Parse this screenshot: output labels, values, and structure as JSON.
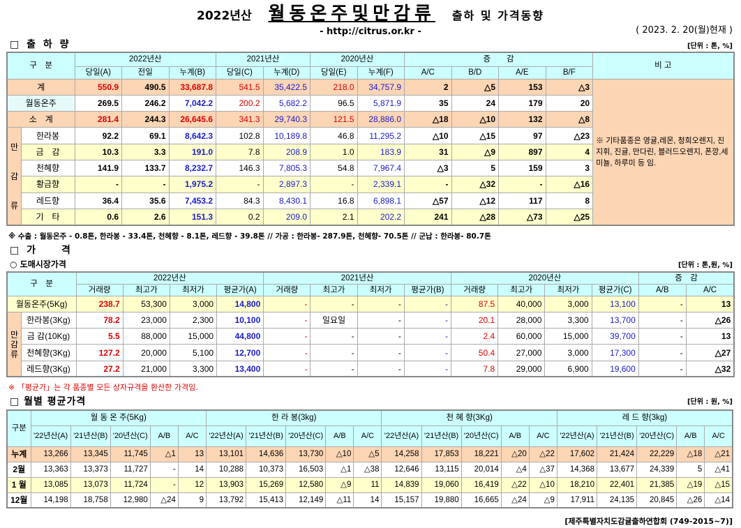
{
  "header": {
    "title_pre": "2022년산",
    "title_main": "월동온주및만감류",
    "title_post": "출하 및 가격동향",
    "url": "- http://citrus.or.kr -",
    "date": "( 2023. 2. 20(월)현재 )"
  },
  "colors": {
    "header": "#ccffff",
    "total_row": "#fcd5b4",
    "alt_row": "#ffffcc",
    "red": "#e00000",
    "blue": "#1a1ad0"
  },
  "shipment": {
    "section": "□ 출 하 량",
    "unit": "[단위 : 톤, %]",
    "group_headers": [
      "구　분",
      "2022년산",
      "2021년산",
      "2020년산",
      "증　　감",
      "비 고"
    ],
    "sub_headers": [
      "당일(A)",
      "전일",
      "누계(B)",
      "당일(C)",
      "누계(D)",
      "당일(E)",
      "누계(F)",
      "A/C",
      "B/D",
      "A/E",
      "B/F"
    ],
    "side_label": [
      "만",
      "감",
      "류"
    ],
    "rows": [
      {
        "label": "계",
        "values": [
          "550.9",
          "490.5",
          "33,687.8",
          "541.5",
          "35,422.5",
          "218.0",
          "34,757.9",
          "2",
          "△5",
          "153",
          "△3"
        ]
      },
      {
        "label": "월동온주",
        "values": [
          "269.5",
          "246.2",
          "7,042.2",
          "200.2",
          "5,682.2",
          "96.5",
          "5,871.9",
          "35",
          "24",
          "179",
          "20"
        ]
      },
      {
        "label": "소　계",
        "values": [
          "281.4",
          "244.3",
          "26,645.6",
          "341.3",
          "29,740.3",
          "121.5",
          "28,886.0",
          "△18",
          "△10",
          "132",
          "△8"
        ]
      },
      {
        "label": "한라봉",
        "values": [
          "92.2",
          "69.1",
          "8,642.3",
          "102.8",
          "10,189.8",
          "46.8",
          "11,295.2",
          "△10",
          "△15",
          "97",
          "△23"
        ]
      },
      {
        "label": "금　감",
        "values": [
          "10.3",
          "3.3",
          "191.0",
          "7.8",
          "208.9",
          "1.0",
          "183.9",
          "31",
          "△9",
          "897",
          "4"
        ]
      },
      {
        "label": "천혜향",
        "values": [
          "141.9",
          "133.7",
          "8,232.7",
          "146.3",
          "7,805.3",
          "54.8",
          "7,967.4",
          "△3",
          "5",
          "159",
          "3"
        ]
      },
      {
        "label": "황금향",
        "values": [
          "-",
          "-",
          "1,975.2",
          "-",
          "2,897.3",
          "-",
          "2,339.1",
          "-",
          "△32",
          "-",
          "△16"
        ]
      },
      {
        "label": "레드향",
        "values": [
          "36.4",
          "35.6",
          "7,453.2",
          "84.3",
          "8,430.1",
          "16.8",
          "6,898.1",
          "△57",
          "△12",
          "117",
          "8"
        ]
      },
      {
        "label": "기　타",
        "values": [
          "0.6",
          "2.6",
          "151.3",
          "0.2",
          "209.0",
          "2.1",
          "202.2",
          "241",
          "△28",
          "△73",
          "△25"
        ]
      }
    ],
    "remark": "※ 기타품종은 영귤,레몬, 청희오렌지, 진지휘, 진귤, 만다린, 블러드오렌지, 폰깡,세미뇰, 하루미 등 임.",
    "footnote": "※ 수출 : 월동온주 - 0.8톤, 한라봉 - 33.4톤, 천혜향 - 8.1톤, 레드향 - 39.8톤  //  가공  :  한라봉- 287.9톤, 천혜향- 70.5톤  //  군납 : 한라봉- 80.7톤"
  },
  "price": {
    "section": "□ 가　　격",
    "subsection": "○ 도매시장가격",
    "unit": "[단위 : 톤,원, %]",
    "group_headers": [
      "구　분",
      "2022년산",
      "2021년산",
      "2020년산",
      "증　감"
    ],
    "sub_headers": [
      "거래량",
      "최고가",
      "최저가",
      "평균가(A)",
      "거래량",
      "최고가",
      "최저가",
      "평균가(B)",
      "거래량",
      "최고가",
      "최저가",
      "평균가(C)",
      "A/B",
      "A/C"
    ],
    "side_label": [
      "만",
      "감",
      "류"
    ],
    "rows": [
      {
        "label": "월동온주(5Kg)",
        "values": [
          "238.7",
          "53,300",
          "3,000",
          "14,800",
          "-",
          "-",
          "-",
          "-",
          "87.5",
          "40,000",
          "3,000",
          "13,100",
          "-",
          "13"
        ]
      },
      {
        "label": "한라봉(3Kg)",
        "values": [
          "78.2",
          "23,000",
          "2,300",
          "10,100",
          "-",
          "일요일",
          "-",
          "-",
          "20.1",
          "28,000",
          "3,300",
          "13,700",
          "-",
          "△26"
        ]
      },
      {
        "label": "금 감(10Kg)",
        "values": [
          "5.5",
          "88,000",
          "15,000",
          "44,800",
          "-",
          "-",
          "-",
          "-",
          "2.4",
          "60,000",
          "15,000",
          "39,700",
          "-",
          "13"
        ]
      },
      {
        "label": "천혜향(3Kg)",
        "values": [
          "127.2",
          "20,000",
          "5,100",
          "12,700",
          "-",
          "-",
          "-",
          "-",
          "50.4",
          "27,000",
          "3,000",
          "17,300",
          "-",
          "△27"
        ]
      },
      {
        "label": "레드향(3Kg)",
        "values": [
          "27.2",
          "21,000",
          "3,300",
          "13,400",
          "-",
          "-",
          "-",
          "-",
          "7.8",
          "29,000",
          "6,900",
          "19,600",
          "-",
          "△32"
        ]
      }
    ],
    "footnote": "※ 「평균가」는 각 품종별 모든 상자규격을 환산한 가격임."
  },
  "monthly": {
    "section": "□ 월별 평균가격",
    "unit": "[단위 : 원, %]",
    "corner": "구분",
    "groups": [
      "월 동 온 주(5Kg)",
      "한 라 봉(3kg)",
      "천 혜 향(3Kg)",
      "레 드 향(3kg)"
    ],
    "sub_headers": [
      "'22년산(A)",
      "'21년산(B)",
      "'20년산(C)",
      "A/B",
      "A/C"
    ],
    "rows": [
      {
        "label": "누계",
        "values": [
          "13,266",
          "13,345",
          "11,745",
          "△1",
          "13",
          "13,101",
          "14,636",
          "13,730",
          "△10",
          "△5",
          "14,258",
          "17,853",
          "18,221",
          "△20",
          "△22",
          "17,602",
          "21,424",
          "22,229",
          "△18",
          "△21"
        ]
      },
      {
        "label": "2월",
        "values": [
          "13,363",
          "13,373",
          "11,727",
          "-",
          "14",
          "10,288",
          "10,373",
          "16,503",
          "△1",
          "△38",
          "12,646",
          "13,115",
          "20,014",
          "△4",
          "△37",
          "14,368",
          "13,677",
          "24,339",
          "5",
          "△41"
        ]
      },
      {
        "label": "1 월",
        "values": [
          "13,085",
          "13,073",
          "11,724",
          "-",
          "12",
          "13,903",
          "15,269",
          "12,580",
          "△9",
          "11",
          "14,839",
          "19,060",
          "16,419",
          "△22",
          "△10",
          "18,210",
          "22,401",
          "21,385",
          "△19",
          "△15"
        ]
      },
      {
        "label": "12월",
        "values": [
          "14,198",
          "18,758",
          "12,980",
          "△24",
          "9",
          "13,792",
          "15,413",
          "12,149",
          "△11",
          "14",
          "15,157",
          "19,880",
          "16,665",
          "△24",
          "△9",
          "17,911",
          "24,135",
          "20,845",
          "△26",
          "△14"
        ]
      }
    ],
    "source": "[제주특별자치도감귤출하연합회 (749-2015~7)]"
  }
}
